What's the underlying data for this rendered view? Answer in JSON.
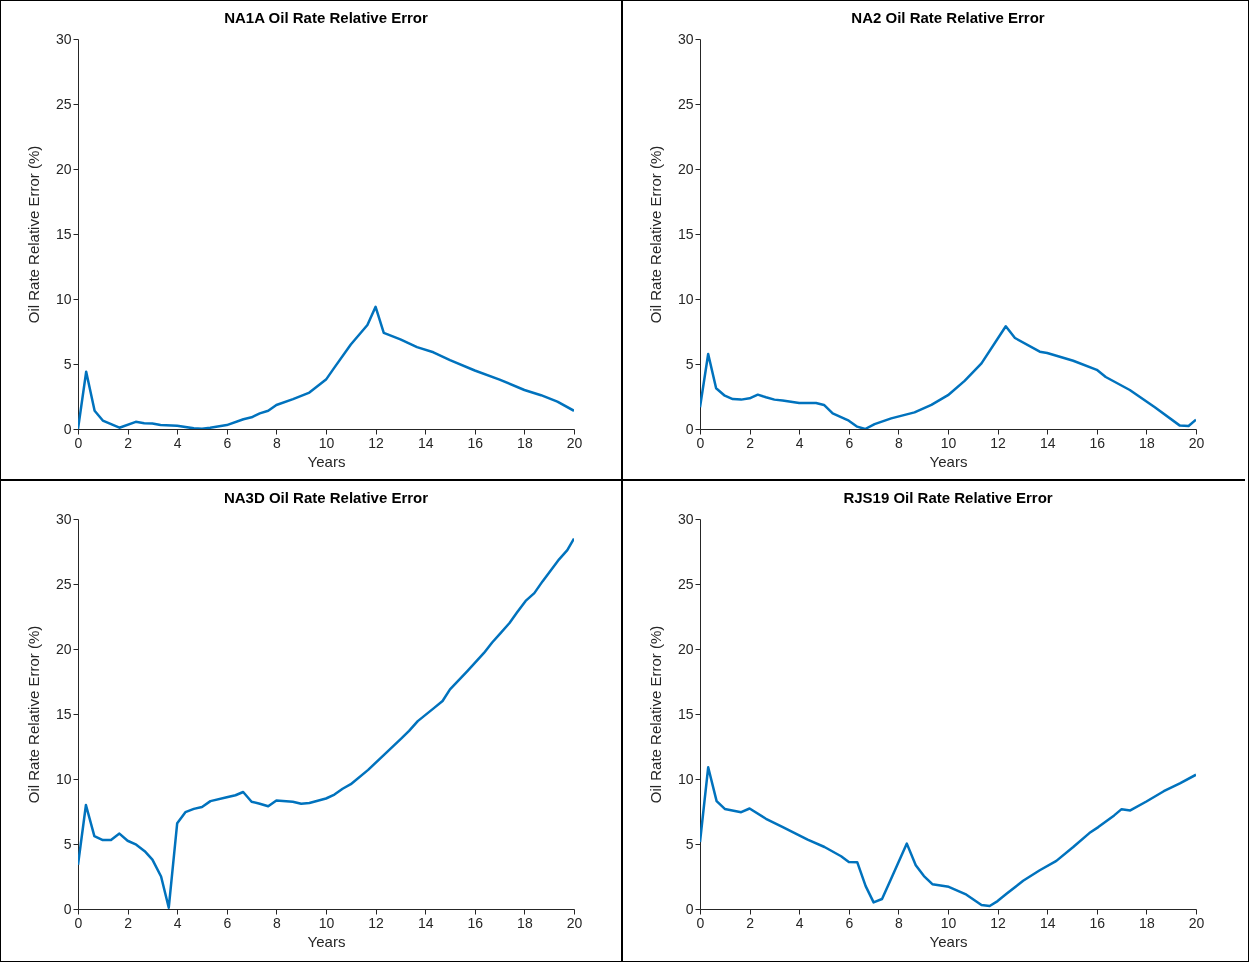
{
  "chart_data": [
    {
      "type": "line",
      "title": "NA1A Oil Rate Relative Error",
      "xlabel": "Years",
      "ylabel": "Oil Rate Relative Error (%)",
      "xlim": [
        0,
        20
      ],
      "xticks": [
        0,
        2,
        4,
        6,
        8,
        10,
        12,
        14,
        16,
        18,
        20
      ],
      "ylim": [
        0,
        30
      ],
      "yticks": [
        0,
        5,
        10,
        15,
        20,
        25,
        30
      ],
      "x": [
        0,
        0.33,
        0.67,
        1,
        1.67,
        2.33,
        2.67,
        3,
        3.33,
        4,
        4.67,
        5,
        5.33,
        6,
        6.67,
        7,
        7.33,
        7.67,
        8,
        8.67,
        9.33,
        10,
        10.33,
        11,
        11.67,
        12,
        12.33,
        13,
        13.67,
        14.33,
        15,
        16,
        17,
        18,
        18.67,
        19.33,
        20
      ],
      "series": [
        {
          "color": "#0072bd",
          "values": [
            0,
            4.4,
            1.4,
            0.65,
            0.1,
            0.55,
            0.45,
            0.42,
            0.3,
            0.25,
            0.05,
            0.02,
            0.1,
            0.3,
            0.75,
            0.9,
            1.2,
            1.4,
            1.85,
            2.3,
            2.8,
            3.8,
            4.7,
            6.5,
            8.0,
            9.4,
            7.4,
            6.9,
            6.3,
            5.9,
            5.3,
            4.5,
            3.8,
            3.0,
            2.6,
            2.1,
            1.4
          ]
        }
      ]
    },
    {
      "type": "line",
      "title": "NA2 Oil Rate Relative Error",
      "xlabel": "Years",
      "ylabel": "Oil Rate Relative Error (%)",
      "xlim": [
        0,
        20
      ],
      "xticks": [
        0,
        2,
        4,
        6,
        8,
        10,
        12,
        14,
        16,
        18,
        20
      ],
      "ylim": [
        0,
        30
      ],
      "yticks": [
        0,
        5,
        10,
        15,
        20,
        25,
        30
      ],
      "x": [
        0,
        0.33,
        0.65,
        1,
        1.32,
        1.66,
        2,
        2.33,
        2.66,
        3,
        3.33,
        4,
        4.68,
        5,
        5.35,
        6,
        6.34,
        6.66,
        7.04,
        7.71,
        8.65,
        9.33,
        10,
        10.67,
        11.35,
        12.33,
        12.7,
        13.7,
        14,
        15.05,
        16,
        16.36,
        17.33,
        18.34,
        19.35,
        19.7,
        20
      ],
      "series": [
        {
          "color": "#0072bd",
          "values": [
            1.67,
            5.77,
            3.13,
            2.56,
            2.3,
            2.26,
            2.36,
            2.64,
            2.44,
            2.26,
            2.2,
            2.0,
            2.0,
            1.85,
            1.2,
            0.64,
            0.18,
            0,
            0.38,
            0.82,
            1.28,
            1.85,
            2.6,
            3.7,
            5.05,
            7.9,
            7.0,
            5.95,
            5.85,
            5.25,
            4.55,
            4.0,
            3.0,
            1.67,
            0.26,
            0.23,
            0.72
          ]
        }
      ]
    },
    {
      "type": "line",
      "title": "NA3D Oil Rate Relative Error",
      "xlabel": "Years",
      "ylabel": "Oil Rate Relative Error (%)",
      "xlim": [
        0,
        20
      ],
      "xticks": [
        0,
        2,
        4,
        6,
        8,
        10,
        12,
        14,
        16,
        18,
        20
      ],
      "ylim": [
        0,
        30
      ],
      "yticks": [
        0,
        5,
        10,
        15,
        20,
        25,
        30
      ],
      "x": [
        0,
        0.32,
        0.66,
        1,
        1.33,
        1.67,
        2,
        2.35,
        2.69,
        3,
        3.35,
        3.66,
        4,
        4.33,
        4.67,
        5,
        5.34,
        6,
        6.35,
        6.66,
        7,
        7.33,
        7.67,
        8,
        8.66,
        9,
        9.33,
        10,
        10.34,
        10.67,
        11,
        11.7,
        12.36,
        13.03,
        13.35,
        13.7,
        14.35,
        14.7,
        15,
        15.7,
        16.37,
        16.7,
        17.03,
        17.4,
        17.7,
        18.05,
        18.4,
        18.73,
        19.4,
        19.73,
        20
      ],
      "series": [
        {
          "color": "#0072bd",
          "values": [
            3.4,
            8.0,
            5.6,
            5.3,
            5.3,
            5.8,
            5.25,
            4.95,
            4.45,
            3.8,
            2.5,
            0.1,
            6.6,
            7.45,
            7.7,
            7.85,
            8.3,
            8.6,
            8.75,
            9.0,
            8.25,
            8.1,
            7.9,
            8.35,
            8.25,
            8.1,
            8.15,
            8.5,
            8.8,
            9.25,
            9.6,
            10.7,
            11.9,
            13.1,
            13.7,
            14.45,
            15.45,
            16.0,
            16.9,
            18.3,
            19.7,
            20.5,
            21.2,
            22.0,
            22.8,
            23.7,
            24.3,
            25.2,
            26.9,
            27.6,
            28.5
          ]
        }
      ]
    },
    {
      "type": "line",
      "title": "RJS19 Oil Rate Relative Error",
      "xlabel": "Years",
      "ylabel": "Oil Rate Relative Error (%)",
      "xlim": [
        0,
        20
      ],
      "xticks": [
        0,
        2,
        4,
        6,
        8,
        10,
        12,
        14,
        16,
        18,
        20
      ],
      "ylim": [
        0,
        30
      ],
      "yticks": [
        0,
        5,
        10,
        15,
        20,
        25,
        30
      ],
      "x": [
        0,
        0.33,
        0.67,
        1,
        1.66,
        2,
        2.66,
        3.34,
        4,
        4.34,
        5.02,
        5.69,
        6,
        6.34,
        6.68,
        7,
        7.34,
        7.68,
        8.34,
        8.7,
        9.03,
        9.37,
        10.03,
        10.7,
        11.35,
        11.68,
        12,
        12.36,
        13.03,
        13.7,
        14.37,
        15.05,
        15.7,
        16.06,
        16.7,
        17,
        17.35,
        18,
        18.7,
        19.35,
        20
      ],
      "series": [
        {
          "color": "#0072bd",
          "values": [
            5.15,
            10.9,
            8.3,
            7.7,
            7.45,
            7.73,
            6.94,
            6.3,
            5.66,
            5.33,
            4.77,
            4.06,
            3.62,
            3.6,
            1.76,
            0.51,
            0.77,
            2.22,
            5.03,
            3.37,
            2.53,
            1.91,
            1.71,
            1.15,
            0.31,
            0.23,
            0.61,
            1.17,
            2.17,
            2.98,
            3.7,
            4.77,
            5.84,
            6.3,
            7.2,
            7.68,
            7.58,
            8.27,
            9.06,
            9.67,
            10.33
          ]
        }
      ]
    }
  ]
}
